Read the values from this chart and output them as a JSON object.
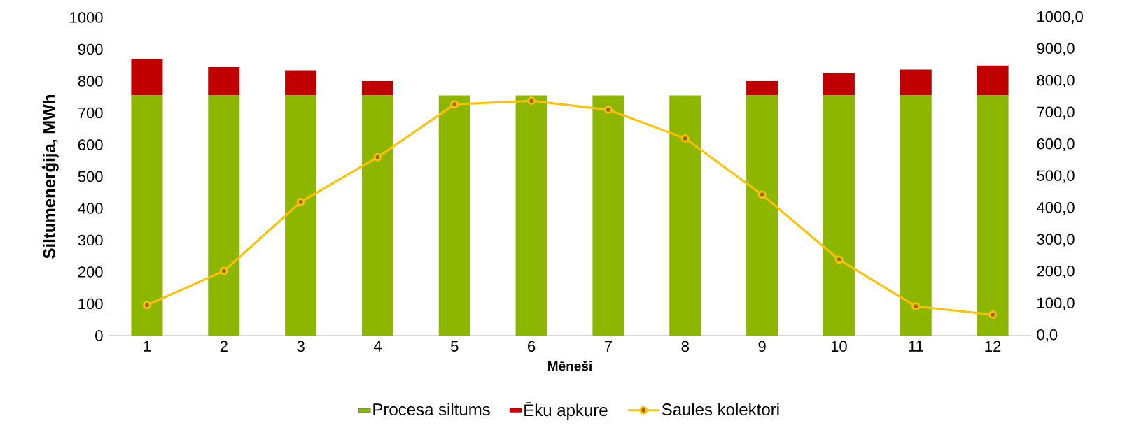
{
  "chart_data": {
    "type": "bar",
    "stacked": true,
    "xlabel": "Mēneši",
    "ylabel": "Siltumenerģija, MWh",
    "categories": [
      "1",
      "2",
      "3",
      "4",
      "5",
      "6",
      "7",
      "8",
      "9",
      "10",
      "11",
      "12"
    ],
    "series": [
      {
        "name": "Procesa siltums",
        "color": "#8db600",
        "values": [
          755,
          755,
          755,
          755,
          755,
          755,
          755,
          755,
          755,
          755,
          755,
          755
        ]
      },
      {
        "name": "Ēku apkure",
        "color": "#c00000",
        "values": [
          115,
          89,
          79,
          45,
          0,
          0,
          0,
          0,
          45,
          70,
          81,
          94
        ]
      },
      {
        "name": "Saules kolektori",
        "type": "line",
        "axis": "y2",
        "color": "#ffc000",
        "values": [
          96,
          203,
          420,
          561,
          727,
          738,
          710,
          620,
          443,
          239,
          92,
          66
        ]
      }
    ],
    "ylim": [
      0,
      1000
    ],
    "yticks": [
      0,
      100,
      200,
      300,
      400,
      500,
      600,
      700,
      800,
      900,
      1000
    ],
    "y2lim": [
      0,
      1000
    ],
    "y2ticks": [
      {
        "value": 0,
        "label": "0,0"
      },
      {
        "value": 100,
        "label": "100,0"
      },
      {
        "value": 200,
        "label": "200,0"
      },
      {
        "value": 300,
        "label": "300,0"
      },
      {
        "value": 400,
        "label": "400,0"
      },
      {
        "value": 500,
        "label": "500,0"
      },
      {
        "value": 600,
        "label": "600,0"
      },
      {
        "value": 700,
        "label": "700,0"
      },
      {
        "value": 800,
        "label": "800,0"
      },
      {
        "value": 900,
        "label": "900,0"
      },
      {
        "value": 1000,
        "label": "1000,0"
      }
    ],
    "marker": "circle",
    "legend": "bottom"
  }
}
